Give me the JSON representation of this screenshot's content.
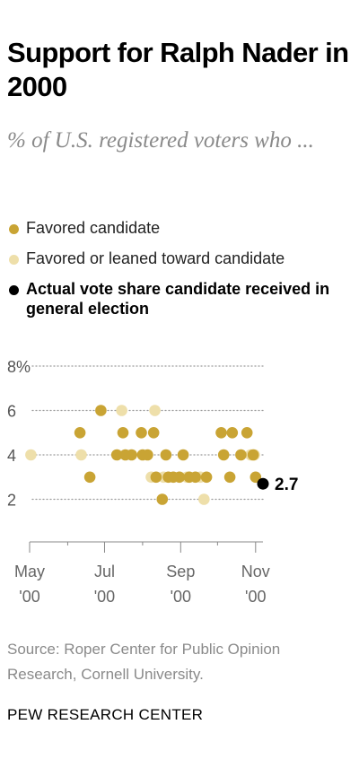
{
  "title": "Support for Ralph Nader in 2000",
  "subtitle": "% of U.S. registered voters who ...",
  "legend": [
    {
      "label": "Favored candidate",
      "color": "#c9a434"
    },
    {
      "label": "Favored or leaned toward candidate",
      "color": "#eedfaa"
    },
    {
      "label": "Actual vote share candidate received in general election",
      "color": "#000000"
    }
  ],
  "source": "Source: Roper Center for Public Opinion Research, Cornell University.",
  "credit": "PEW RESEARCH CENTER",
  "chart_data": {
    "type": "scatter",
    "ylim": [
      0,
      8
    ],
    "y_ticks": [
      {
        "value": 2,
        "label": "2"
      },
      {
        "value": 4,
        "label": "4"
      },
      {
        "value": 6,
        "label": "6"
      },
      {
        "value": 8,
        "label": "8%"
      }
    ],
    "x_range": [
      "2000-05-01",
      "2000-11-07"
    ],
    "x_ticks": [
      {
        "date": "2000-05-01",
        "label": [
          "May",
          "'00"
        ]
      },
      {
        "date": "2000-07-01",
        "label": [
          "Jul",
          "'00"
        ]
      },
      {
        "date": "2000-09-01",
        "label": [
          "Sep",
          "'00"
        ]
      },
      {
        "date": "2000-11-01",
        "label": [
          "Nov",
          "'00"
        ]
      }
    ],
    "grid": true,
    "series": [
      {
        "name": "Favored candidate",
        "color": "#c9a434",
        "points": [
          {
            "x": "2000-06-11",
            "y": 5
          },
          {
            "x": "2000-06-19",
            "y": 3
          },
          {
            "x": "2000-06-28",
            "y": 6
          },
          {
            "x": "2000-07-11",
            "y": 4
          },
          {
            "x": "2000-07-16",
            "y": 5
          },
          {
            "x": "2000-07-18",
            "y": 4
          },
          {
            "x": "2000-07-23",
            "y": 4
          },
          {
            "x": "2000-07-31",
            "y": 5
          },
          {
            "x": "2000-08-01",
            "y": 4
          },
          {
            "x": "2000-08-05",
            "y": 4
          },
          {
            "x": "2000-08-10",
            "y": 5
          },
          {
            "x": "2000-08-12",
            "y": 3
          },
          {
            "x": "2000-08-17",
            "y": 2
          },
          {
            "x": "2000-08-20",
            "y": 4
          },
          {
            "x": "2000-08-22",
            "y": 3
          },
          {
            "x": "2000-08-26",
            "y": 3
          },
          {
            "x": "2000-08-31",
            "y": 3
          },
          {
            "x": "2000-09-03",
            "y": 4
          },
          {
            "x": "2000-09-08",
            "y": 3
          },
          {
            "x": "2000-09-13",
            "y": 3
          },
          {
            "x": "2000-09-22",
            "y": 3
          },
          {
            "x": "2000-10-04",
            "y": 5
          },
          {
            "x": "2000-10-06",
            "y": 4
          },
          {
            "x": "2000-10-11",
            "y": 3
          },
          {
            "x": "2000-10-13",
            "y": 5
          },
          {
            "x": "2000-10-20",
            "y": 4
          },
          {
            "x": "2000-10-25",
            "y": 5
          },
          {
            "x": "2000-10-30",
            "y": 4
          },
          {
            "x": "2000-11-01",
            "y": 3
          }
        ]
      },
      {
        "name": "Favored or leaned toward candidate",
        "color": "#eedfaa",
        "points": [
          {
            "x": "2000-05-02",
            "y": 4
          },
          {
            "x": "2000-06-12",
            "y": 4
          },
          {
            "x": "2000-07-15",
            "y": 6
          },
          {
            "x": "2000-08-08",
            "y": 3
          },
          {
            "x": "2000-08-11",
            "y": 6
          },
          {
            "x": "2000-08-18",
            "y": 3
          },
          {
            "x": "2000-09-06",
            "y": 3
          },
          {
            "x": "2000-09-17",
            "y": 3
          },
          {
            "x": "2000-09-20",
            "y": 2
          },
          {
            "x": "2000-10-28",
            "y": 4
          },
          {
            "x": "2000-10-31",
            "y": 4
          }
        ]
      }
    ],
    "actual": {
      "x": "2000-11-07",
      "y": 2.7,
      "label": "2.7",
      "color": "#000000"
    }
  }
}
